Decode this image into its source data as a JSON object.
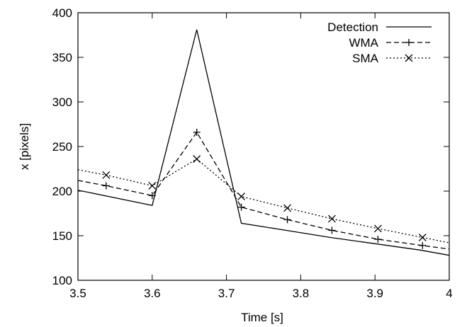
{
  "chart_data": {
    "type": "line",
    "title": "",
    "xlabel": "Time [s]",
    "ylabel": "x [pixels]",
    "xlim": [
      3.5,
      4.0
    ],
    "ylim": [
      100,
      400
    ],
    "xticks": [
      "3.5",
      "3.6",
      "3.7",
      "3.8",
      "3.9",
      "4"
    ],
    "yticks": [
      "100",
      "150",
      "200",
      "250",
      "300",
      "350",
      "400"
    ],
    "grid": false,
    "legend_position": "top-right",
    "series": [
      {
        "name": "Detection",
        "style": "solid",
        "marker": "none",
        "x": [
          3.5,
          3.6,
          3.66,
          3.72,
          3.78,
          3.84,
          3.9,
          3.96,
          4.0
        ],
        "y": [
          201,
          184,
          381,
          164,
          156,
          148,
          141,
          134,
          128
        ]
      },
      {
        "name": "WMA",
        "style": "dashed",
        "marker": "plus",
        "x": [
          3.5,
          3.538,
          3.6,
          3.66,
          3.72,
          3.782,
          3.842,
          3.904,
          3.964,
          4.0
        ],
        "y": [
          212,
          206,
          195,
          266,
          182,
          168,
          156,
          146,
          139,
          135
        ],
        "marker_x": [
          3.538,
          3.6,
          3.66,
          3.72,
          3.782,
          3.842,
          3.904,
          3.964
        ]
      },
      {
        "name": "SMA",
        "style": "dotted",
        "marker": "cross",
        "x": [
          3.5,
          3.538,
          3.6,
          3.66,
          3.72,
          3.782,
          3.842,
          3.904,
          3.964,
          4.0
        ],
        "y": [
          224,
          218,
          206,
          236,
          194,
          181,
          169,
          158,
          148,
          142
        ],
        "marker_x": [
          3.538,
          3.6,
          3.66,
          3.72,
          3.782,
          3.842,
          3.904,
          3.964
        ]
      }
    ]
  }
}
